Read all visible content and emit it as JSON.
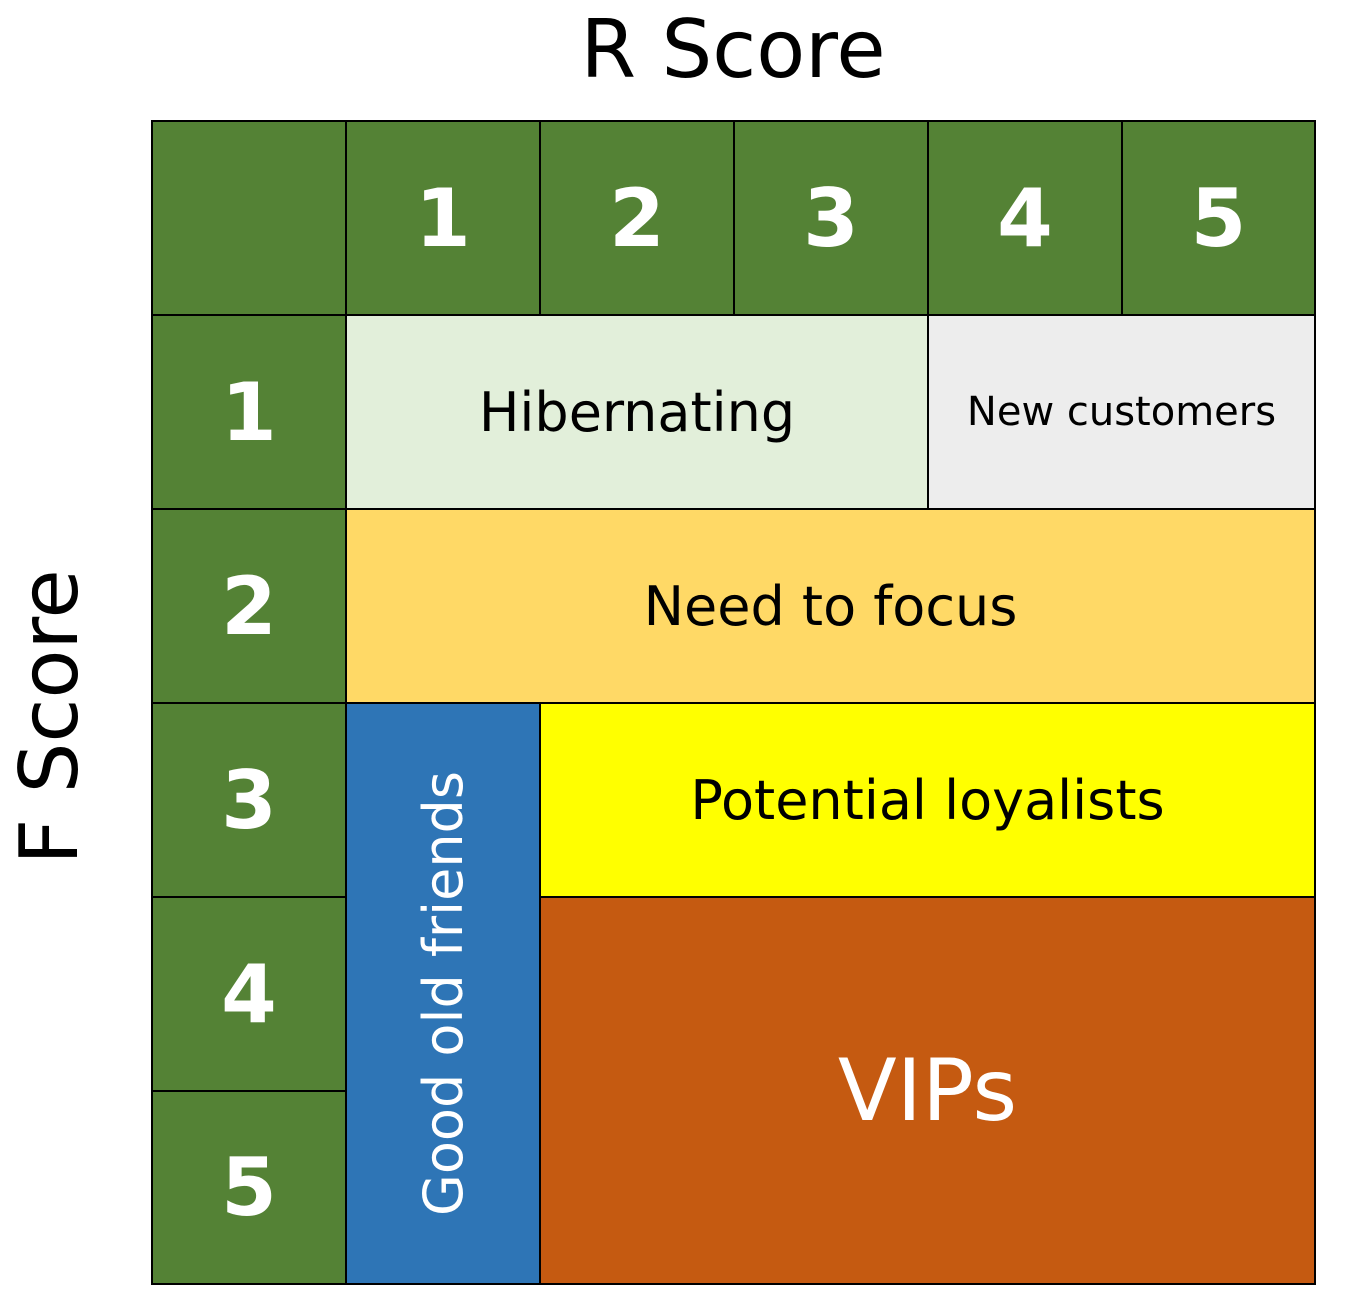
{
  "axes": {
    "r_title": "R Score",
    "f_title": "F Score"
  },
  "header": {
    "corner": "",
    "r_scores": [
      "1",
      "2",
      "3",
      "4",
      "5"
    ],
    "f_scores": [
      "1",
      "2",
      "3",
      "4",
      "5"
    ]
  },
  "segments": {
    "hibernating": {
      "label": "Hibernating",
      "color": "#E2EFDA",
      "text_color": "#000000"
    },
    "new_customers": {
      "label": "New customers",
      "color": "#EDEDED",
      "text_color": "#000000"
    },
    "need_to_focus": {
      "label": "Need to focus",
      "color": "#FFD966",
      "text_color": "#000000"
    },
    "good_old_friends": {
      "label": "Good old friends",
      "color": "#2E75B6",
      "text_color": "#FFFFFF"
    },
    "potential_loyalists": {
      "label": "Potential loyalists",
      "color": "#FFFF00",
      "text_color": "#000000"
    },
    "vips": {
      "label": "VIPs",
      "color": "#C55A11",
      "text_color": "#FFFFFF"
    }
  },
  "colors": {
    "header_green": "#548235",
    "grid_line": "#000000"
  }
}
